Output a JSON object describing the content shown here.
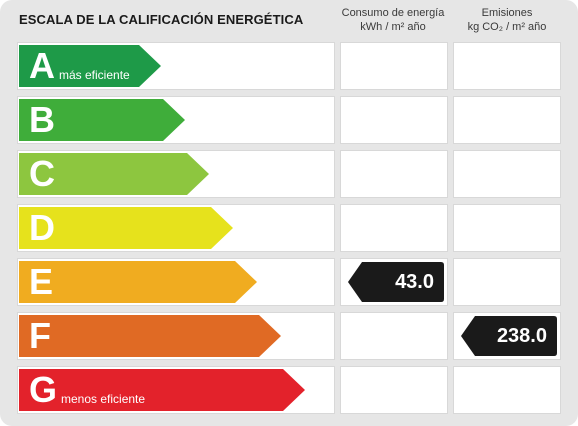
{
  "header": {
    "title": "ESCALA DE LA CALIFICACIÓN ENERGÉTICA",
    "energy_col_line1": "Consumo de energía",
    "energy_col_line2": "kWh / m² año",
    "emissions_col_line1": "Emisiones",
    "emissions_col_line2": "kg CO₂ / m² año"
  },
  "ratings": [
    {
      "letter": "A",
      "sublabel": "más eficiente",
      "color": "#1e9a48"
    },
    {
      "letter": "B",
      "sublabel": "",
      "color": "#3fad3a"
    },
    {
      "letter": "C",
      "sublabel": "",
      "color": "#8dc63f"
    },
    {
      "letter": "D",
      "sublabel": "",
      "color": "#e6e21c"
    },
    {
      "letter": "E",
      "sublabel": "",
      "color": "#f0ac20"
    },
    {
      "letter": "F",
      "sublabel": "",
      "color": "#e06a24"
    },
    {
      "letter": "G",
      "sublabel": "menos eficiente",
      "color": "#e3222b"
    }
  ],
  "values": {
    "energy": {
      "rating": "E",
      "value": "43.0"
    },
    "emissions": {
      "rating": "F",
      "value": "238.0"
    }
  }
}
